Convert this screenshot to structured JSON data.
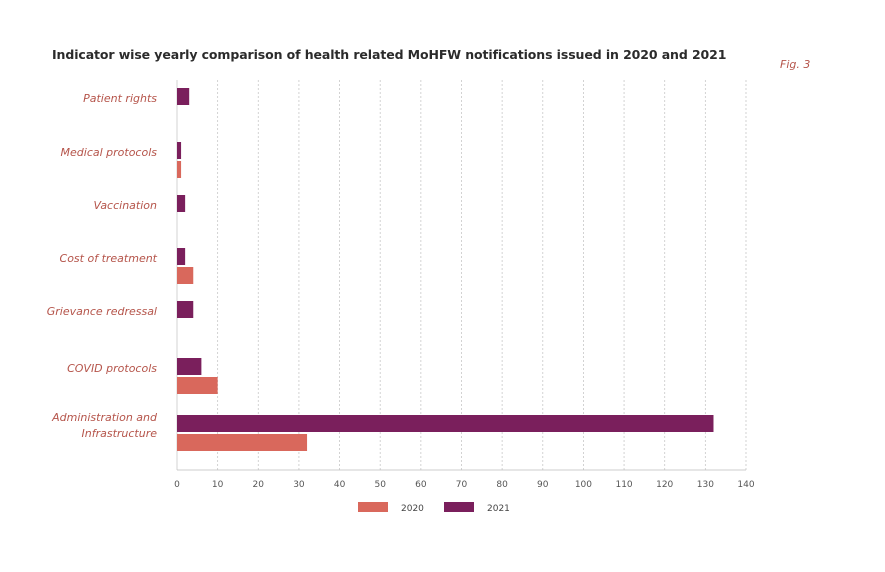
{
  "title": "Indicator wise yearly comparison of health related MoHFW notifications issued in 2020 and 2021",
  "fig_label": "Fig. 3",
  "colors": {
    "s2020": "#d9685c",
    "s2021": "#7a1f5c",
    "grid": "#c8c8c8",
    "label": "#b5544a"
  },
  "chart_data": {
    "type": "bar",
    "orientation": "horizontal",
    "title": "Indicator wise yearly comparison of health related MoHFW notifications issued in 2020 and 2021",
    "categories": [
      [
        "Patient rights"
      ],
      [
        "Medical protocols"
      ],
      [
        "Vaccination"
      ],
      [
        "Cost of treatment"
      ],
      [
        "Grievance redressal"
      ],
      [
        "COVID protocols"
      ],
      [
        "Administration and",
        "Infrastructure"
      ]
    ],
    "series": [
      {
        "name": "2021",
        "values": [
          3,
          1,
          2,
          2,
          4,
          6,
          132
        ]
      },
      {
        "name": "2020",
        "values": [
          0,
          1,
          0,
          4,
          0,
          10,
          32
        ]
      }
    ],
    "xlim": [
      0,
      140
    ],
    "xticks": [
      0,
      10,
      20,
      30,
      40,
      50,
      60,
      70,
      80,
      90,
      100,
      110,
      120,
      130,
      140
    ],
    "grid": true,
    "legend": [
      "2020",
      "2021"
    ],
    "legend_position": "bottom-center"
  }
}
